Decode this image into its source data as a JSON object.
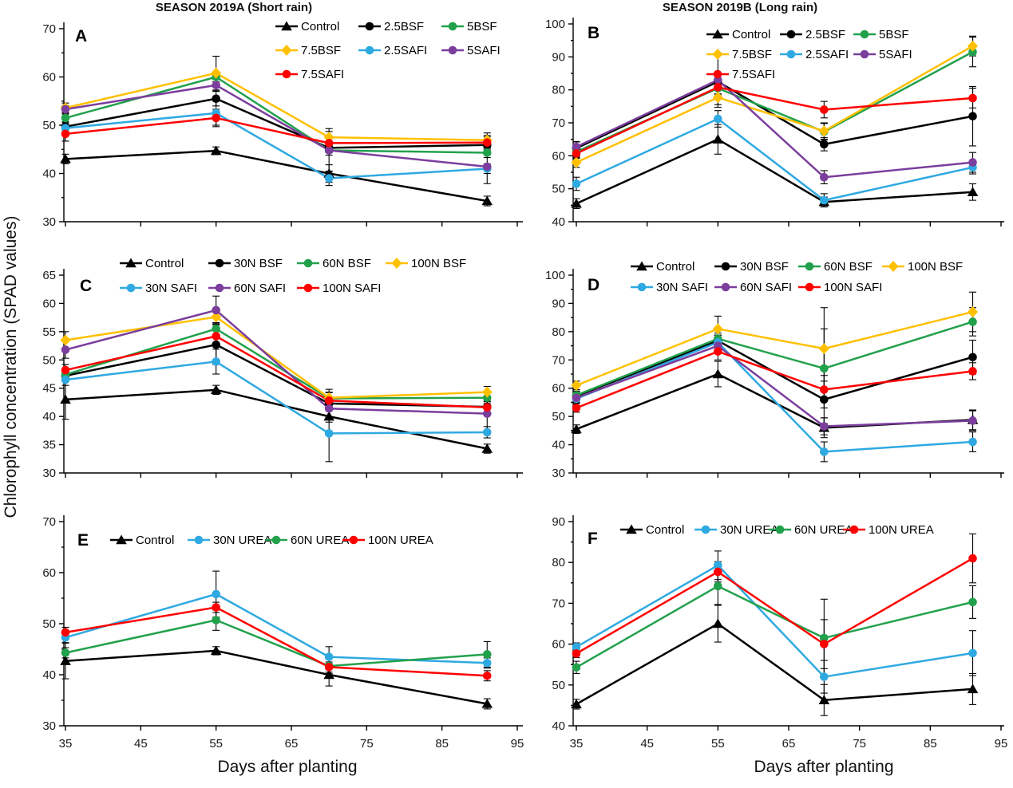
{
  "figure": {
    "ylabel": "Chlorophyll concentration (SPAD values)",
    "xlabel": "Days after planting",
    "columns": [
      {
        "title": "SEASON 2019A (Short rain)"
      },
      {
        "title": "SEASON 2019B (Long rain)"
      }
    ]
  },
  "colors": {
    "black": "#000000",
    "green": "#22A14C",
    "yellow": "#FFC000",
    "blue": "#2FA9E1",
    "purple": "#7B3E9D",
    "red": "#FF0000"
  },
  "chart_data": [
    {
      "id": "A",
      "type": "line",
      "season": "2019A (Short rain)",
      "x": [
        35,
        55,
        70,
        91
      ],
      "xticks": [
        35,
        45,
        55,
        65,
        75,
        85,
        95
      ],
      "ylim": [
        30,
        70
      ],
      "ytick_step": 10,
      "yminor": true,
      "series": [
        {
          "name": "Control",
          "color": "#000000",
          "marker": "triangle",
          "values": [
            43.0,
            44.7,
            40.0,
            34.3
          ],
          "err": [
            1.0,
            0.8,
            1.8,
            1.0
          ]
        },
        {
          "name": "2.5BSF",
          "color": "#000000",
          "marker": "circle",
          "values": [
            49.7,
            55.5,
            45.3,
            45.9
          ],
          "err": [
            0.8,
            1.5,
            1.0,
            2.0
          ]
        },
        {
          "name": "5BSF",
          "color": "#22A14C",
          "marker": "circle",
          "values": [
            51.5,
            60.0,
            44.8,
            44.3
          ],
          "err": [
            0.8,
            1.0,
            1.0,
            1.0
          ]
        },
        {
          "name": "7.5BSF",
          "color": "#FFC000",
          "marker": "diamond",
          "values": [
            53.6,
            60.8,
            47.5,
            46.9
          ],
          "err": [
            1.0,
            3.5,
            1.2,
            1.5
          ]
        },
        {
          "name": "2.5SAFI",
          "color": "#2FA9E1",
          "marker": "circle",
          "values": [
            49.4,
            52.5,
            39.0,
            41.0
          ],
          "err": [
            0.8,
            2.5,
            1.5,
            1.0
          ]
        },
        {
          "name": "5SAFI",
          "color": "#7B3E9D",
          "marker": "circle",
          "values": [
            53.3,
            58.3,
            44.8,
            41.4
          ],
          "err": [
            0.8,
            1.2,
            4.5,
            3.5
          ]
        },
        {
          "name": "7.5SAFI",
          "color": "#FF0000",
          "marker": "circle",
          "values": [
            48.2,
            51.5,
            46.3,
            46.4
          ],
          "err": [
            1.5,
            1.8,
            1.0,
            1.2
          ]
        }
      ]
    },
    {
      "id": "B",
      "type": "line",
      "season": "2019B (Long rain)",
      "x": [
        35,
        55,
        70,
        91
      ],
      "xticks": [
        35,
        45,
        55,
        65,
        75,
        85,
        95
      ],
      "ylim": [
        40,
        100
      ],
      "ytick_step": 10,
      "yminor": true,
      "series": [
        {
          "name": "Control",
          "color": "#000000",
          "marker": "triangle",
          "values": [
            45.5,
            65.0,
            46.0,
            49.0
          ],
          "err": [
            1.5,
            4.5,
            1.5,
            2.5
          ]
        },
        {
          "name": "2.5BSF",
          "color": "#000000",
          "marker": "circle",
          "values": [
            62.3,
            82.5,
            63.5,
            72.0
          ],
          "err": [
            2.0,
            2.0,
            2.0,
            9.0
          ]
        },
        {
          "name": "5BSF",
          "color": "#22A14C",
          "marker": "circle",
          "values": [
            61.2,
            80.5,
            67.3,
            91.5
          ],
          "err": [
            1.5,
            2.0,
            2.5,
            4.5
          ]
        },
        {
          "name": "7.5BSF",
          "color": "#FFC000",
          "marker": "diamond",
          "values": [
            58.0,
            77.7,
            67.5,
            93.3
          ],
          "err": [
            1.5,
            3.0,
            2.5,
            3.0
          ]
        },
        {
          "name": "2.5SAFI",
          "color": "#2FA9E1",
          "marker": "circle",
          "values": [
            51.5,
            71.2,
            46.5,
            56.5
          ],
          "err": [
            2.0,
            2.5,
            2.0,
            2.0
          ]
        },
        {
          "name": "5SAFI",
          "color": "#7B3E9D",
          "marker": "circle",
          "values": [
            62.7,
            83.0,
            53.5,
            58.0
          ],
          "err": [
            1.5,
            7.5,
            2.0,
            3.0
          ]
        },
        {
          "name": "7.5SAFI",
          "color": "#FF0000",
          "marker": "circle",
          "values": [
            60.7,
            80.8,
            74.0,
            77.5
          ],
          "err": [
            1.5,
            2.0,
            2.5,
            3.0
          ]
        }
      ]
    },
    {
      "id": "C",
      "type": "line",
      "season": "2019A (Short rain)",
      "x": [
        35,
        55,
        70,
        91
      ],
      "xticks": [
        35,
        45,
        55,
        65,
        75,
        85,
        95
      ],
      "ylim": [
        30,
        65
      ],
      "ytick_step": 5,
      "yminor": false,
      "series": [
        {
          "name": "Control",
          "color": "#000000",
          "marker": "triangle",
          "values": [
            43.0,
            44.7,
            40.0,
            34.3
          ],
          "err": [
            3.5,
            0.8,
            1.0,
            0.8
          ]
        },
        {
          "name": "30N BSF",
          "color": "#000000",
          "marker": "circle",
          "values": [
            47.2,
            52.7,
            42.3,
            41.7
          ],
          "err": [
            1.0,
            3.5,
            1.0,
            1.0
          ]
        },
        {
          "name": "60N BSF",
          "color": "#22A14C",
          "marker": "circle",
          "values": [
            47.4,
            55.5,
            43.2,
            43.3
          ],
          "err": [
            1.0,
            1.0,
            1.0,
            1.0
          ]
        },
        {
          "name": "100N BSF",
          "color": "#FFC000",
          "marker": "diamond",
          "values": [
            53.5,
            57.6,
            43.3,
            44.3
          ],
          "err": [
            1.5,
            1.0,
            1.5,
            1.0
          ]
        },
        {
          "name": "30N SAFI",
          "color": "#2FA9E1",
          "marker": "circle",
          "values": [
            46.5,
            49.7,
            37.0,
            37.2
          ],
          "err": [
            1.0,
            2.2,
            5.0,
            1.0
          ]
        },
        {
          "name": "60N SAFI",
          "color": "#7B3E9D",
          "marker": "circle",
          "values": [
            51.8,
            58.8,
            41.4,
            40.5
          ],
          "err": [
            1.5,
            2.5,
            1.5,
            3.0
          ]
        },
        {
          "name": "100N SAFI",
          "color": "#FF0000",
          "marker": "circle",
          "values": [
            48.2,
            54.2,
            42.8,
            41.6
          ],
          "err": [
            1.0,
            1.5,
            1.5,
            1.0
          ]
        }
      ]
    },
    {
      "id": "D",
      "type": "line",
      "season": "2019B (Long rain)",
      "x": [
        35,
        55,
        70,
        91
      ],
      "xticks": [
        35,
        45,
        55,
        65,
        75,
        85,
        95
      ],
      "ylim": [
        30,
        100
      ],
      "ytick_step": 10,
      "yminor": true,
      "series": [
        {
          "name": "Control",
          "color": "#000000",
          "marker": "triangle",
          "values": [
            45.5,
            65.0,
            46.0,
            48.8
          ],
          "err": [
            1.5,
            4.5,
            3.5,
            3.5
          ]
        },
        {
          "name": "30N BSF",
          "color": "#000000",
          "marker": "circle",
          "values": [
            57.2,
            76.8,
            56.0,
            71.0
          ],
          "err": [
            1.5,
            2.0,
            8.5,
            6.0
          ]
        },
        {
          "name": "60N BSF",
          "color": "#22A14C",
          "marker": "circle",
          "values": [
            57.5,
            77.5,
            67.0,
            83.5
          ],
          "err": [
            1.5,
            2.0,
            14.0,
            5.0
          ]
        },
        {
          "name": "100N BSF",
          "color": "#FFC000",
          "marker": "diamond",
          "values": [
            61.0,
            81.0,
            74.0,
            87.0
          ],
          "err": [
            1.5,
            4.5,
            14.5,
            7.0
          ]
        },
        {
          "name": "30N SAFI",
          "color": "#2FA9E1",
          "marker": "circle",
          "values": [
            56.3,
            76.2,
            37.5,
            41.0
          ],
          "err": [
            1.5,
            2.5,
            3.5,
            3.5
          ]
        },
        {
          "name": "60N SAFI",
          "color": "#7B3E9D",
          "marker": "circle",
          "values": [
            56.6,
            75.0,
            46.5,
            48.5
          ],
          "err": [
            1.5,
            2.0,
            3.0,
            3.5
          ]
        },
        {
          "name": "100N SAFI",
          "color": "#FF0000",
          "marker": "circle",
          "values": [
            53.0,
            73.0,
            59.5,
            66.0
          ],
          "err": [
            1.5,
            3.0,
            3.0,
            3.0
          ]
        }
      ]
    },
    {
      "id": "E",
      "type": "line",
      "season": "2019A (Short rain)",
      "x": [
        35,
        55,
        70,
        91
      ],
      "xticks": [
        35,
        45,
        55,
        65,
        75,
        85,
        95
      ],
      "ylim": [
        30,
        70
      ],
      "ytick_step": 10,
      "yminor": true,
      "series": [
        {
          "name": "Control",
          "color": "#000000",
          "marker": "triangle",
          "values": [
            42.7,
            44.7,
            40.0,
            34.3
          ],
          "err": [
            3.5,
            0.8,
            2.2,
            1.0
          ]
        },
        {
          "name": "30N UREA",
          "color": "#2FA9E1",
          "marker": "circle",
          "values": [
            47.3,
            55.8,
            43.5,
            42.3
          ],
          "err": [
            1.0,
            4.5,
            2.0,
            1.0
          ]
        },
        {
          "name": "60N UREA",
          "color": "#22A14C",
          "marker": "circle",
          "values": [
            44.3,
            50.7,
            41.7,
            44.0
          ],
          "err": [
            1.0,
            2.0,
            1.5,
            2.5
          ]
        },
        {
          "name": "100N UREA",
          "color": "#FF0000",
          "marker": "circle",
          "values": [
            48.3,
            53.2,
            41.5,
            39.8
          ],
          "err": [
            1.0,
            1.0,
            1.0,
            1.0
          ]
        }
      ]
    },
    {
      "id": "F",
      "type": "line",
      "season": "2019B (Long rain)",
      "x": [
        35,
        55,
        70,
        91
      ],
      "xticks": [
        35,
        45,
        55,
        65,
        75,
        85,
        95
      ],
      "ylim": [
        40,
        90
      ],
      "ytick_step": 10,
      "yminor": true,
      "series": [
        {
          "name": "Control",
          "color": "#000000",
          "marker": "triangle",
          "values": [
            45.3,
            65.0,
            46.3,
            49.0
          ],
          "err": [
            1.2,
            4.5,
            3.8,
            3.8
          ]
        },
        {
          "name": "30N UREA",
          "color": "#2FA9E1",
          "marker": "circle",
          "values": [
            59.3,
            79.3,
            52.0,
            57.8
          ],
          "err": [
            1.0,
            3.5,
            4.0,
            5.5
          ]
        },
        {
          "name": "60N UREA",
          "color": "#22A14C",
          "marker": "circle",
          "values": [
            54.3,
            74.2,
            61.5,
            70.3
          ],
          "err": [
            1.5,
            4.5,
            9.5,
            4.0
          ]
        },
        {
          "name": "100N UREA",
          "color": "#FF0000",
          "marker": "circle",
          "values": [
            57.7,
            77.7,
            60.0,
            81.0
          ],
          "err": [
            1.0,
            2.5,
            6.0,
            6.0
          ]
        }
      ]
    }
  ]
}
